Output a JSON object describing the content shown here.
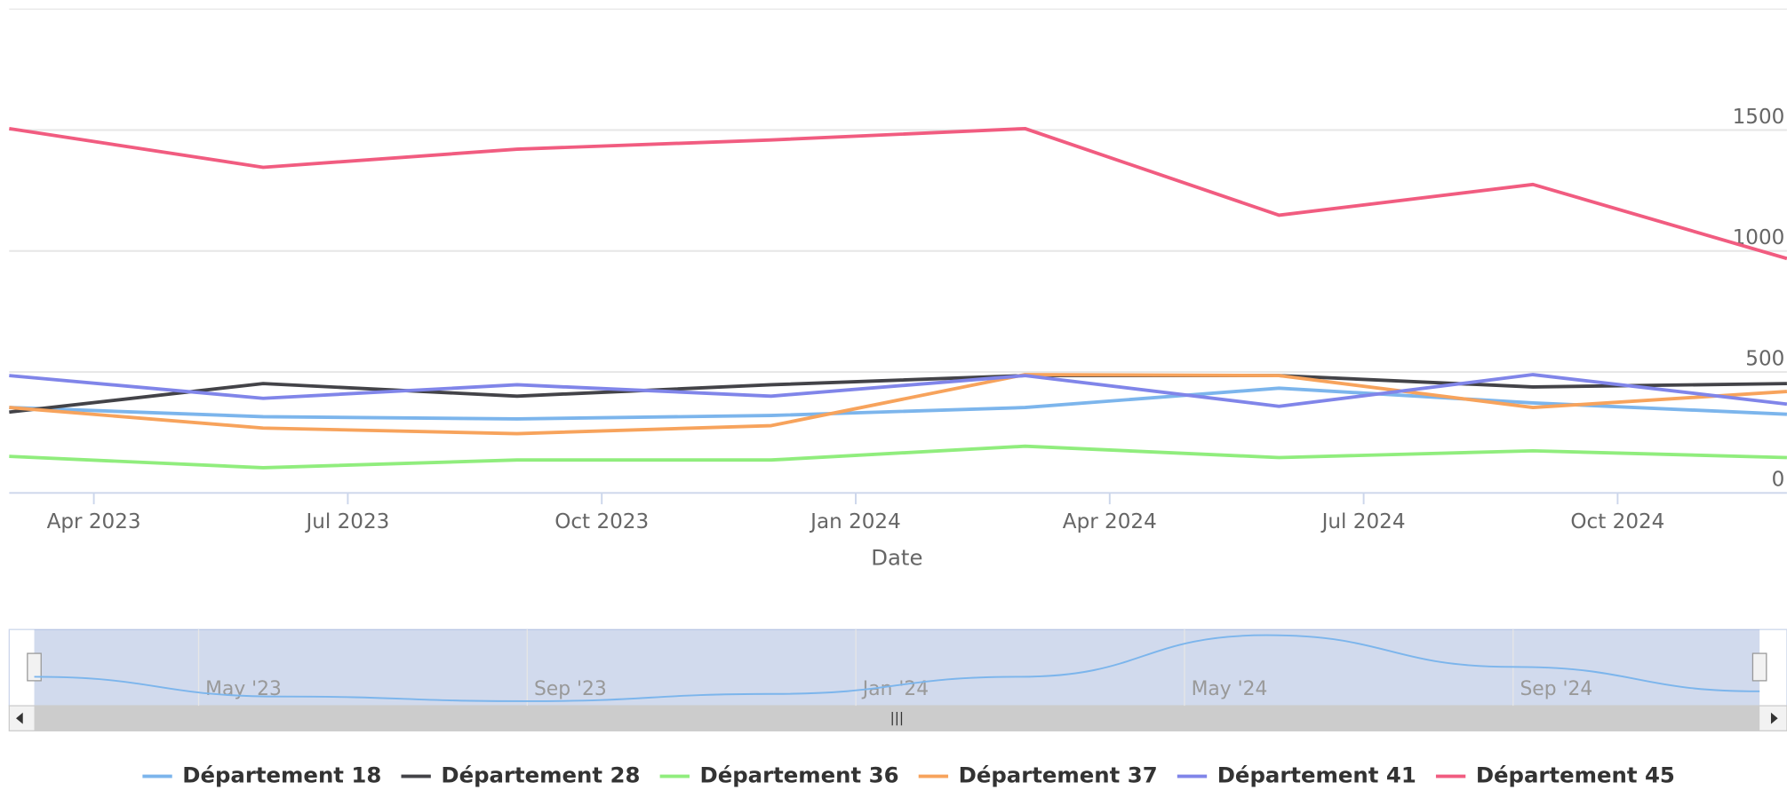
{
  "chart_data": {
    "type": "line",
    "x_label": "Date",
    "x": [
      "2023-03",
      "2023-06",
      "2023-09",
      "2023-12",
      "2024-03",
      "2024-06",
      "2024-09",
      "2024-12"
    ],
    "xlim": [
      "2023-03",
      "2024-12"
    ],
    "xticks": [
      {
        "value": "2023-04",
        "label": "Apr 2023"
      },
      {
        "value": "2023-07",
        "label": "Jul 2023"
      },
      {
        "value": "2023-10",
        "label": "Oct 2023"
      },
      {
        "value": "2024-01",
        "label": "Jan 2024"
      },
      {
        "value": "2024-04",
        "label": "Apr 2024"
      },
      {
        "value": "2024-07",
        "label": "Jul 2024"
      },
      {
        "value": "2024-10",
        "label": "Oct 2024"
      }
    ],
    "ylim": [
      0,
      2000
    ],
    "yticks": [
      0,
      500,
      1000,
      1500
    ],
    "grid": true,
    "legend": "bottom",
    "navigator_xticks": [
      {
        "value": "2023-05",
        "label": "May '23"
      },
      {
        "value": "2023-09",
        "label": "Sep '23"
      },
      {
        "value": "2024-01",
        "label": "Jan '24"
      },
      {
        "value": "2024-05",
        "label": "May '24"
      },
      {
        "value": "2024-09",
        "label": "Sep '24"
      }
    ],
    "series": [
      {
        "name": "Département 18",
        "color": "#7cb5ec",
        "values": [
          353,
          315,
          306,
          320,
          353,
          433,
          372,
          325
        ]
      },
      {
        "name": "Département 28",
        "color": "#434348",
        "values": [
          334,
          452,
          400,
          447,
          485,
          485,
          438,
          452
        ]
      },
      {
        "name": "Département 36",
        "color": "#90ed7d",
        "values": [
          151,
          104,
          136,
          136,
          193,
          146,
          174,
          146
        ]
      },
      {
        "name": "Département 37",
        "color": "#f7a35c",
        "values": [
          353,
          268,
          245,
          278,
          489,
          485,
          353,
          419
        ]
      },
      {
        "name": "Département 41",
        "color": "#8085e9",
        "values": [
          485,
          391,
          447,
          400,
          485,
          358,
          489,
          367
        ]
      },
      {
        "name": "Département 45",
        "color": "#f15c80",
        "values": [
          1506,
          1346,
          1421,
          1459,
          1506,
          1148,
          1275,
          969
        ]
      }
    ]
  }
}
